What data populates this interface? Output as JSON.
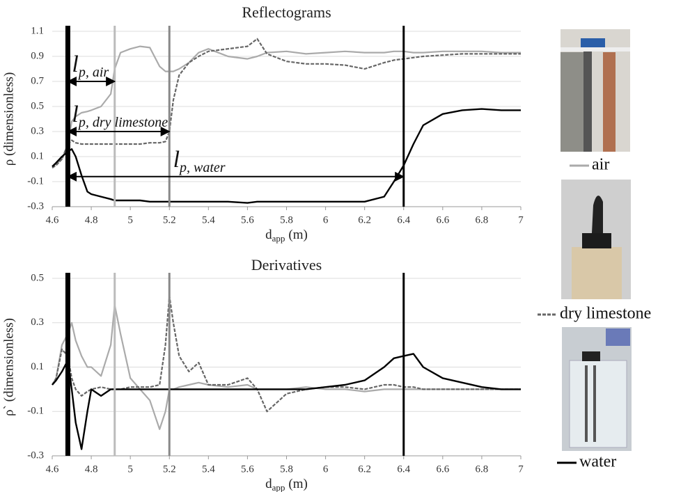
{
  "chart_data": [
    {
      "type": "line",
      "title": "Reflectograms",
      "x_label": {
        "text": "d",
        "sub": "app",
        "unit": "(m)"
      },
      "y_label": "ρ (dimensionless)",
      "xlim": [
        4.6,
        7
      ],
      "xticks": [
        4.6,
        4.8,
        5,
        5.2,
        5.4,
        5.6,
        5.8,
        6,
        6.2,
        6.4,
        6.6,
        6.8,
        7
      ],
      "ylim": [
        -0.3,
        1.1
      ],
      "yticks": [
        -0.3,
        -0.1,
        0.1,
        0.3,
        0.5,
        0.7,
        0.9,
        1.1
      ],
      "grid": true,
      "x": [
        4.6,
        4.62,
        4.65,
        4.68,
        4.7,
        4.72,
        4.75,
        4.78,
        4.8,
        4.85,
        4.9,
        4.92,
        4.95,
        5.0,
        5.05,
        5.1,
        5.15,
        5.18,
        5.2,
        5.22,
        5.25,
        5.3,
        5.35,
        5.4,
        5.5,
        5.6,
        5.65,
        5.7,
        5.8,
        5.9,
        6.0,
        6.1,
        6.2,
        6.3,
        6.35,
        6.4,
        6.45,
        6.5,
        6.6,
        6.7,
        6.8,
        6.9,
        7.0
      ],
      "series": [
        {
          "name": "air",
          "color": "#aaaaaa",
          "dashed": false,
          "values": [
            0.02,
            0.04,
            0.08,
            0.2,
            0.38,
            0.42,
            0.45,
            0.46,
            0.47,
            0.5,
            0.6,
            0.8,
            0.93,
            0.96,
            0.98,
            0.97,
            0.82,
            0.78,
            0.78,
            0.78,
            0.8,
            0.85,
            0.93,
            0.96,
            0.9,
            0.88,
            0.9,
            0.93,
            0.94,
            0.92,
            0.93,
            0.94,
            0.93,
            0.93,
            0.94,
            0.94,
            0.93,
            0.93,
            0.94,
            0.94,
            0.94,
            0.93,
            0.93
          ]
        },
        {
          "name": "dry limestone",
          "color": "#666666",
          "dashed": true,
          "values": [
            0.01,
            0.03,
            0.08,
            0.2,
            0.23,
            0.21,
            0.2,
            0.2,
            0.2,
            0.2,
            0.2,
            0.2,
            0.2,
            0.2,
            0.2,
            0.21,
            0.21,
            0.22,
            0.3,
            0.55,
            0.75,
            0.85,
            0.9,
            0.94,
            0.96,
            0.98,
            1.04,
            0.92,
            0.86,
            0.84,
            0.84,
            0.83,
            0.8,
            0.85,
            0.87,
            0.88,
            0.89,
            0.9,
            0.91,
            0.92,
            0.92,
            0.92,
            0.92
          ]
        },
        {
          "name": "water",
          "color": "#000000",
          "dashed": false,
          "values": [
            0.02,
            0.05,
            0.1,
            0.14,
            0.16,
            0.1,
            -0.05,
            -0.18,
            -0.2,
            -0.22,
            -0.24,
            -0.25,
            -0.25,
            -0.25,
            -0.25,
            -0.26,
            -0.26,
            -0.26,
            -0.26,
            -0.26,
            -0.26,
            -0.26,
            -0.26,
            -0.26,
            -0.26,
            -0.27,
            -0.26,
            -0.26,
            -0.26,
            -0.26,
            -0.26,
            -0.26,
            -0.26,
            -0.22,
            -0.1,
            0.03,
            0.2,
            0.35,
            0.44,
            0.47,
            0.48,
            0.47,
            0.47
          ]
        }
      ],
      "vlines": [
        {
          "x": 4.68,
          "color": "#000000"
        },
        {
          "x": 4.92,
          "color": "#bbbbbb"
        },
        {
          "x": 5.2,
          "color": "#888888"
        },
        {
          "x": 6.4,
          "color": "#000000"
        }
      ],
      "annotations": [
        {
          "text": "l",
          "sub": "p, air",
          "x_from": 4.68,
          "x_to": 4.92,
          "y": 0.7
        },
        {
          "text": "l",
          "sub": "p, dry limestone",
          "x_from": 4.68,
          "x_to": 5.2,
          "y": 0.3
        },
        {
          "text": "l",
          "sub": "p, water",
          "x_from": 4.68,
          "x_to": 6.4,
          "y": -0.06
        }
      ]
    },
    {
      "type": "line",
      "title": "Derivatives",
      "x_label": {
        "text": "d",
        "sub": "app",
        "unit": "(m)"
      },
      "y_label": "ρ` (dimensionless)",
      "xlim": [
        4.6,
        7
      ],
      "xticks": [
        4.6,
        4.8,
        5,
        5.2,
        5.4,
        5.6,
        5.8,
        6,
        6.2,
        6.4,
        6.6,
        6.8,
        7
      ],
      "ylim": [
        -0.3,
        0.5
      ],
      "yticks": [
        -0.3,
        -0.1,
        0.1,
        0.3,
        0.5
      ],
      "grid": true,
      "x": [
        4.6,
        4.62,
        4.65,
        4.68,
        4.7,
        4.72,
        4.75,
        4.78,
        4.8,
        4.85,
        4.9,
        4.92,
        4.95,
        5.0,
        5.05,
        5.1,
        5.15,
        5.18,
        5.2,
        5.22,
        5.25,
        5.3,
        5.35,
        5.4,
        5.5,
        5.6,
        5.65,
        5.7,
        5.8,
        5.9,
        6.0,
        6.1,
        6.2,
        6.3,
        6.35,
        6.4,
        6.45,
        6.5,
        6.6,
        6.7,
        6.8,
        6.9,
        7.0
      ],
      "series": [
        {
          "name": "air",
          "color": "#aaaaaa",
          "dashed": false,
          "values": [
            0.02,
            0.05,
            0.2,
            0.25,
            0.3,
            0.22,
            0.15,
            0.1,
            0.1,
            0.06,
            0.2,
            0.38,
            0.25,
            0.05,
            0.0,
            -0.05,
            -0.18,
            -0.1,
            0.0,
            0.0,
            0.01,
            0.02,
            0.03,
            0.02,
            0.01,
            0.02,
            0.0,
            0.0,
            0.0,
            0.01,
            0.0,
            0.0,
            -0.01,
            0.0,
            0.0,
            0.0,
            0.0,
            0.0,
            0.0,
            0.0,
            0.0,
            0.0,
            0.0
          ]
        },
        {
          "name": "dry limestone",
          "color": "#666666",
          "dashed": true,
          "values": [
            0.02,
            0.05,
            0.18,
            0.15,
            0.05,
            0.0,
            -0.03,
            -0.01,
            0.0,
            0.01,
            0.0,
            0.0,
            0.0,
            0.01,
            0.01,
            0.01,
            0.02,
            0.2,
            0.42,
            0.3,
            0.15,
            0.08,
            0.12,
            0.02,
            0.02,
            0.05,
            0.0,
            -0.1,
            -0.02,
            0.0,
            0.01,
            0.01,
            0.0,
            0.02,
            0.02,
            0.01,
            0.01,
            0.0,
            0.0,
            0.0,
            0.0,
            0.0,
            0.0
          ]
        },
        {
          "name": "water",
          "color": "#000000",
          "dashed": false,
          "values": [
            0.02,
            0.04,
            0.08,
            0.13,
            0.0,
            -0.15,
            -0.27,
            -0.1,
            0.0,
            -0.03,
            0.0,
            0.0,
            0.0,
            0.0,
            0.0,
            0.0,
            0.0,
            0.0,
            0.0,
            0.0,
            0.0,
            0.0,
            0.0,
            0.0,
            0.0,
            0.0,
            0.0,
            0.0,
            0.0,
            0.0,
            0.01,
            0.02,
            0.04,
            0.1,
            0.14,
            0.15,
            0.16,
            0.1,
            0.05,
            0.03,
            0.01,
            0.0,
            0.0
          ]
        }
      ],
      "vlines": [
        {
          "x": 4.68,
          "color": "#000000"
        },
        {
          "x": 4.92,
          "color": "#bbbbbb"
        },
        {
          "x": 5.2,
          "color": "#888888"
        },
        {
          "x": 6.4,
          "color": "#000000"
        }
      ],
      "annotations": []
    }
  ]
}
